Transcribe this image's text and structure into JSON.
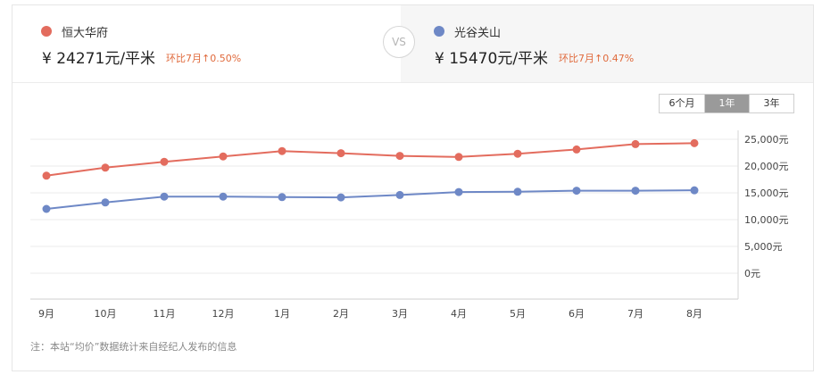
{
  "compare": {
    "left": {
      "name": "恒大华府",
      "color": "#e36c5e",
      "price_prefix": "¥",
      "price": "24271元/平米",
      "ratio": "环比7月↑0.50%"
    },
    "vs_label": "VS",
    "right": {
      "name": "光谷关山",
      "color": "#6e88c6",
      "price_prefix": "¥",
      "price": "15470元/平米",
      "ratio": "环比7月↑0.47%"
    }
  },
  "range_options": [
    {
      "label": "6个月",
      "active": false
    },
    {
      "label": "1年",
      "active": true
    },
    {
      "label": "3年",
      "active": false
    }
  ],
  "note": "注：本站“均价”数据统计来自经纪人发布的信息",
  "chart_data": {
    "type": "line",
    "categories": [
      "9月",
      "10月",
      "11月",
      "12月",
      "1月",
      "2月",
      "3月",
      "4月",
      "5月",
      "6月",
      "7月",
      "8月"
    ],
    "series": [
      {
        "name": "恒大华府",
        "color": "#e36c5e",
        "values": [
          18200,
          19700,
          20800,
          21800,
          22800,
          22400,
          21900,
          21700,
          22300,
          23100,
          24100,
          24271
        ]
      },
      {
        "name": "光谷关山",
        "color": "#6e88c6",
        "values": [
          12000,
          13200,
          14300,
          14300,
          14200,
          14150,
          14600,
          15150,
          15200,
          15400,
          15400,
          15470
        ]
      }
    ],
    "yticks": [
      "25,000元",
      "20,000元",
      "15,000元",
      "10,000元",
      "5,000元",
      "0元"
    ],
    "ylim": [
      0,
      25000
    ],
    "xlabel": "",
    "ylabel": "",
    "title": ""
  }
}
